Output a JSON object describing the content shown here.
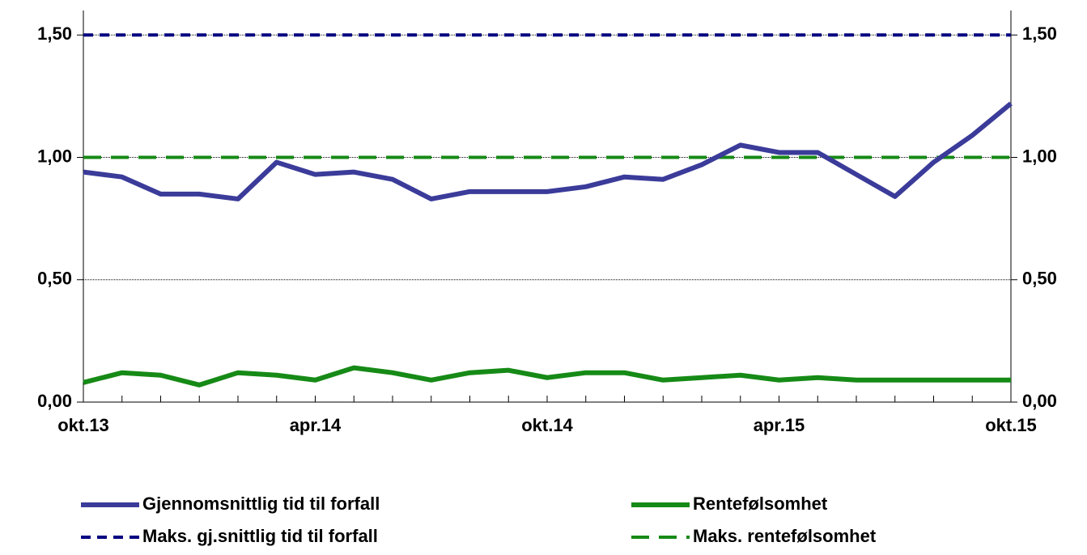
{
  "chart_data": {
    "type": "line",
    "categories": [
      "okt.13",
      null,
      null,
      null,
      null,
      null,
      "apr.14",
      null,
      null,
      null,
      null,
      null,
      "okt.14",
      null,
      null,
      null,
      null,
      null,
      "apr.15",
      null,
      null,
      null,
      null,
      null,
      "okt.15"
    ],
    "series": [
      {
        "name": "Gjennomsnittlig tid til forfall",
        "color": "#3b3b9a",
        "dashed": false,
        "values": [
          0.94,
          0.92,
          0.85,
          0.85,
          0.83,
          0.98,
          0.93,
          0.94,
          0.91,
          0.83,
          0.86,
          0.86,
          0.86,
          0.88,
          0.92,
          0.91,
          0.97,
          1.05,
          1.02,
          1.02,
          0.93,
          0.84,
          0.98,
          1.09,
          1.22
        ]
      },
      {
        "name": "Rentefølsomhet",
        "color": "#168a16",
        "dashed": false,
        "values": [
          0.08,
          0.12,
          0.11,
          0.07,
          0.12,
          0.11,
          0.09,
          0.14,
          0.12,
          0.09,
          0.12,
          0.13,
          0.1,
          0.12,
          0.12,
          0.09,
          0.1,
          0.11,
          0.09,
          0.1,
          0.09,
          0.09,
          0.09,
          0.09,
          0.09
        ]
      },
      {
        "name": "Maks. gj.snittlig tid til forfall",
        "color": "#000080",
        "dashed": true,
        "values": [
          1.5,
          1.5,
          1.5,
          1.5,
          1.5,
          1.5,
          1.5,
          1.5,
          1.5,
          1.5,
          1.5,
          1.5,
          1.5,
          1.5,
          1.5,
          1.5,
          1.5,
          1.5,
          1.5,
          1.5,
          1.5,
          1.5,
          1.5,
          1.5,
          1.5
        ]
      },
      {
        "name": "Maks. rentefølsomhet",
        "color": "#168a16",
        "dashed": true,
        "values": [
          1.0,
          1.0,
          1.0,
          1.0,
          1.0,
          1.0,
          1.0,
          1.0,
          1.0,
          1.0,
          1.0,
          1.0,
          1.0,
          1.0,
          1.0,
          1.0,
          1.0,
          1.0,
          1.0,
          1.0,
          1.0,
          1.0,
          1.0,
          1.0,
          1.0
        ]
      }
    ],
    "ylim": [
      0,
      1.6
    ],
    "yticks": [
      {
        "value": 0,
        "label": "0,00"
      },
      {
        "value": 0.5,
        "label": "0,50"
      },
      {
        "value": 1,
        "label": "1,00"
      },
      {
        "value": 1.5,
        "label": "1,50"
      }
    ],
    "y2lim": [
      0,
      1.6
    ],
    "y2ticks": [
      {
        "value": 0,
        "label": "0,00"
      },
      {
        "value": 0.5,
        "label": "0,50"
      },
      {
        "value": 1,
        "label": "1,00"
      },
      {
        "value": 1.5,
        "label": "1,50"
      }
    ],
    "grid": true
  }
}
